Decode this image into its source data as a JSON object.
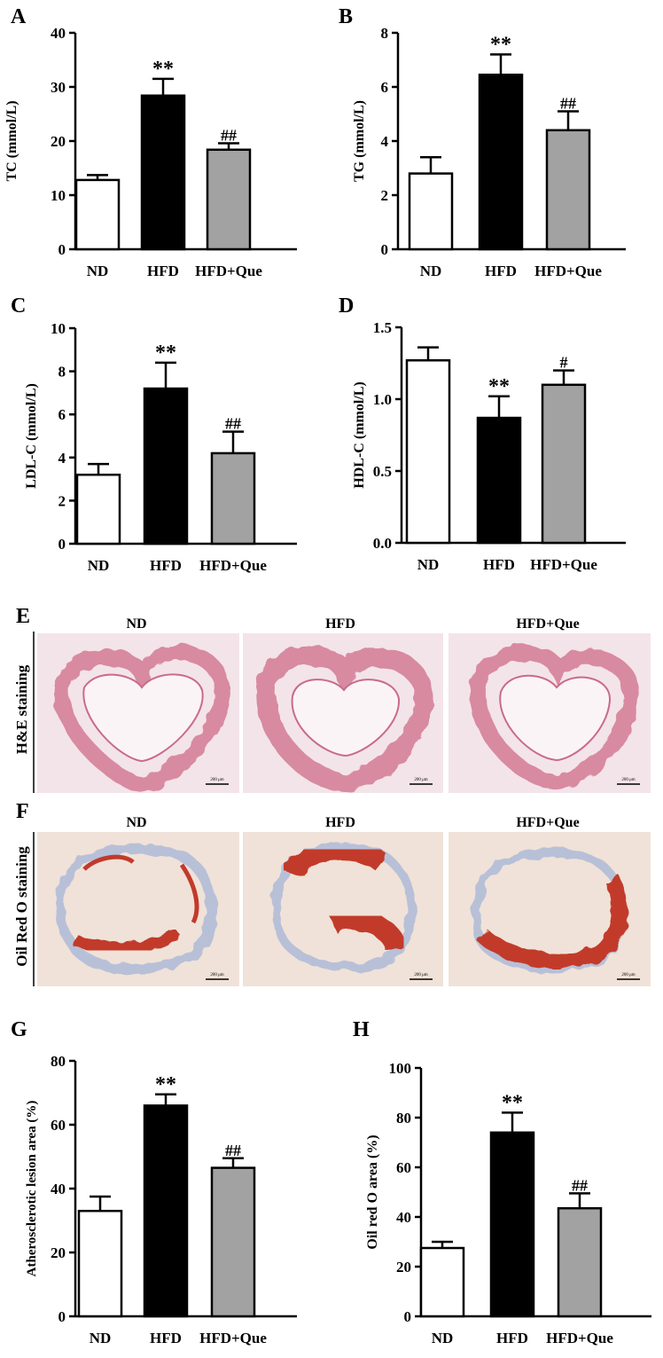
{
  "colors": {
    "ND": "#ffffff",
    "HFD": "#000000",
    "HFD+Que": "#a2a2a2",
    "he_stain": "#d88aa0",
    "he_background": "#f3e4ea",
    "oro_stain": "#c23a2c",
    "oro_background": "#f0e2d8"
  },
  "chart_data": [
    {
      "panel": "A",
      "type": "bar",
      "categories": [
        "ND",
        "HFD",
        "HFD+Que"
      ],
      "values": [
        12.8,
        28.4,
        18.4
      ],
      "errors": [
        0.9,
        3.1,
        1.2
      ],
      "marks": [
        "",
        "**",
        "##"
      ],
      "ylabel": "TC (mmol/L)",
      "ylim": [
        0,
        40
      ],
      "ticks": [
        "0",
        "10",
        "20",
        "30",
        "40"
      ]
    },
    {
      "panel": "B",
      "type": "bar",
      "categories": [
        "ND",
        "HFD",
        "HFD+Que"
      ],
      "values": [
        2.8,
        6.45,
        4.4
      ],
      "errors": [
        0.6,
        0.75,
        0.7
      ],
      "marks": [
        "",
        "**",
        "##"
      ],
      "ylabel": "TG (mmol/L)",
      "ylim": [
        0,
        8
      ],
      "ticks": [
        "0",
        "2",
        "4",
        "6",
        "8"
      ]
    },
    {
      "panel": "C",
      "type": "bar",
      "categories": [
        "ND",
        "HFD",
        "HFD+Que"
      ],
      "values": [
        3.2,
        7.2,
        4.2
      ],
      "errors": [
        0.5,
        1.2,
        1.0
      ],
      "marks": [
        "",
        "**",
        "##"
      ],
      "ylabel": "LDL-C (mmol/L)",
      "ylim": [
        0,
        10
      ],
      "ticks": [
        "0",
        "2",
        "4",
        "6",
        "8",
        "10"
      ]
    },
    {
      "panel": "D",
      "type": "bar",
      "categories": [
        "ND",
        "HFD",
        "HFD+Que"
      ],
      "values": [
        1.27,
        0.87,
        1.1
      ],
      "errors": [
        0.09,
        0.15,
        0.1
      ],
      "marks": [
        "",
        "**",
        "#"
      ],
      "ylabel": "HDL-C (mmol/L)",
      "ylim": [
        0,
        1.5
      ],
      "ticks": [
        "0.0",
        "0.5",
        "1.0",
        "1.5"
      ]
    },
    {
      "panel": "G",
      "type": "bar",
      "categories": [
        "ND",
        "HFD",
        "HFD+Que"
      ],
      "values": [
        33,
        66,
        46.5
      ],
      "errors": [
        4.5,
        3.5,
        3
      ],
      "marks": [
        "",
        "**",
        "##"
      ],
      "ylabel": "Atherosclerotic lesion area (%)",
      "ylim": [
        0,
        80
      ],
      "ticks": [
        "0",
        "20",
        "40",
        "60",
        "80"
      ]
    },
    {
      "panel": "H",
      "type": "bar",
      "categories": [
        "ND",
        "HFD",
        "HFD+Que"
      ],
      "values": [
        27.5,
        74,
        43.5
      ],
      "errors": [
        2.5,
        8,
        6
      ],
      "marks": [
        "",
        "**",
        "##"
      ],
      "ylabel": "Oil red O area (%)",
      "ylim": [
        0,
        100
      ],
      "ticks": [
        "0",
        "20",
        "40",
        "60",
        "80",
        "100"
      ]
    }
  ],
  "panel_E": {
    "letter": "E",
    "row_label": "H&E staining",
    "columns": [
      "ND",
      "HFD",
      "HFD+Que"
    ],
    "scale_label": "200 μm"
  },
  "panel_F": {
    "letter": "F",
    "row_label": "Oil Red O staining",
    "columns": [
      "ND",
      "HFD",
      "HFD+Que"
    ],
    "scale_label": "200 μm"
  }
}
